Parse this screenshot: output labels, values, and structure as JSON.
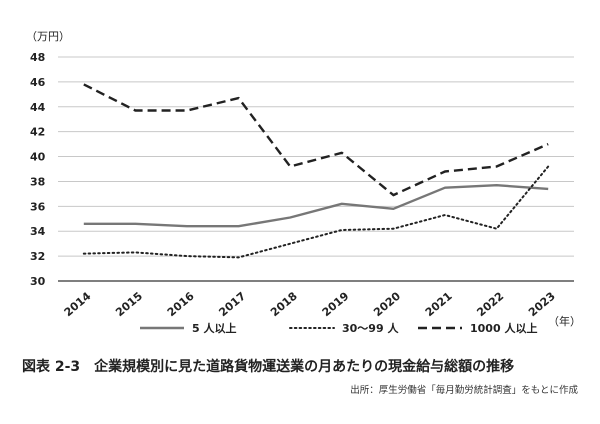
{
  "chart_data": {
    "type": "line",
    "y_unit_label": "（万円）",
    "x_unit_label": "（年）",
    "x": [
      "2014",
      "2015",
      "2016",
      "2017",
      "2018",
      "2019",
      "2020",
      "2021",
      "2022",
      "2023"
    ],
    "ylim": [
      30,
      48
    ],
    "yticks": [
      30,
      32,
      34,
      36,
      38,
      40,
      42,
      44,
      46,
      48
    ],
    "grid": "horizontal",
    "legend_position": "bottom",
    "series": [
      {
        "name": "5 人以上",
        "style": "solid",
        "color": "#777777",
        "values": [
          34.6,
          34.6,
          34.4,
          34.4,
          35.1,
          36.2,
          35.8,
          37.5,
          37.7,
          37.4
        ]
      },
      {
        "name": "30～99 人",
        "style": "dotted",
        "color": "#222222",
        "values": [
          32.2,
          32.3,
          32.0,
          31.9,
          33.0,
          34.1,
          34.2,
          35.3,
          34.2,
          39.2
        ]
      },
      {
        "name": "1000 人以上",
        "style": "dashed",
        "color": "#222222",
        "values": [
          45.8,
          43.7,
          43.7,
          44.7,
          39.2,
          40.3,
          36.9,
          38.8,
          39.2,
          41.0
        ]
      }
    ]
  },
  "caption": {
    "number": "図表 2-3",
    "title": "企業規模別に見た道路貨物運送業の月あたりの現金給与総額の推移"
  },
  "source": "出所：厚生労働省「毎月勤労統計調査」をもとに作成"
}
